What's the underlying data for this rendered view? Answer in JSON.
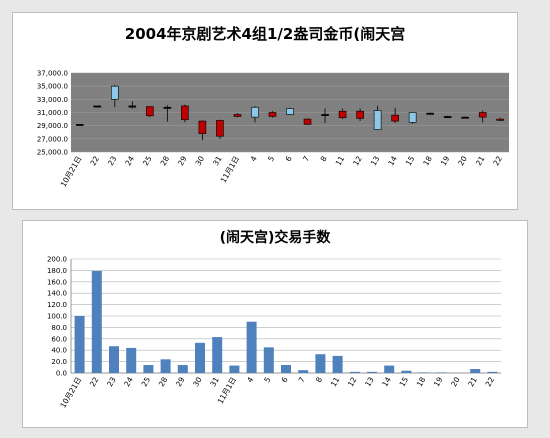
{
  "chart_data": [
    {
      "type": "candlestick",
      "title": "2004年京剧艺术4组1/2盎司金币(闹天宫",
      "categories": [
        "10月21日",
        "22",
        "23",
        "24",
        "25",
        "28",
        "29",
        "30",
        "31",
        "11月1日",
        "4",
        "5",
        "6",
        "7",
        "8",
        "11",
        "12",
        "13",
        "14",
        "15",
        "18",
        "19",
        "20",
        "21",
        "22"
      ],
      "ylim": [
        25000,
        37000
      ],
      "yticks": [
        "25,000.0",
        "27,000.0",
        "29,000.0",
        "31,000.0",
        "33,000.0",
        "35,000.0",
        "37,000.0"
      ],
      "open": [
        29200,
        32000,
        33000,
        32000,
        31900,
        31800,
        32000,
        29700,
        29800,
        30700,
        30300,
        31000,
        30700,
        30000,
        30700,
        31200,
        31200,
        28400,
        30600,
        29500,
        30900,
        30400,
        30300,
        31000,
        30000
      ],
      "close": [
        29200,
        32000,
        35000,
        32000,
        30500,
        31800,
        29900,
        27800,
        27400,
        30400,
        31800,
        30400,
        31600,
        29200,
        30700,
        30200,
        30100,
        31300,
        29700,
        31000,
        30900,
        30400,
        30300,
        30300,
        29800
      ],
      "high": [
        29200,
        32000,
        35200,
        32700,
        31900,
        32100,
        32200,
        29800,
        29900,
        30900,
        32000,
        31200,
        31700,
        30100,
        31600,
        31600,
        31600,
        32000,
        31700,
        31000,
        31000,
        30500,
        30400,
        31300,
        30200
      ],
      "low": [
        29200,
        32000,
        31800,
        31600,
        30300,
        29600,
        29500,
        26800,
        27000,
        30300,
        29500,
        30200,
        30600,
        29100,
        29400,
        30000,
        29700,
        28300,
        29400,
        29300,
        30800,
        30300,
        30200,
        29500,
        29700
      ],
      "plot_bg": "#808080",
      "rising_color": "#8ec8e8",
      "falling_color": "#c00000"
    },
    {
      "type": "bar",
      "title": "(闹天宫)交易手数",
      "categories": [
        "10月21日",
        "22",
        "23",
        "24",
        "25",
        "28",
        "29",
        "30",
        "31",
        "11月1日",
        "4",
        "5",
        "6",
        "7",
        "8",
        "11",
        "12",
        "13",
        "14",
        "15",
        "18",
        "19",
        "20",
        "21",
        "22"
      ],
      "values": [
        100,
        179,
        47,
        44,
        14,
        24,
        14,
        53,
        63,
        13,
        90,
        45,
        14,
        5,
        33,
        30,
        2,
        2,
        13,
        4,
        1,
        1,
        0,
        7,
        2
      ],
      "ylim": [
        0,
        200
      ],
      "yticks": [
        "0.0",
        "20.0",
        "40.0",
        "60.0",
        "80.0",
        "100.0",
        "120.0",
        "140.0",
        "160.0",
        "180.0",
        "200.0"
      ],
      "bar_color": "#4f81bd"
    }
  ]
}
